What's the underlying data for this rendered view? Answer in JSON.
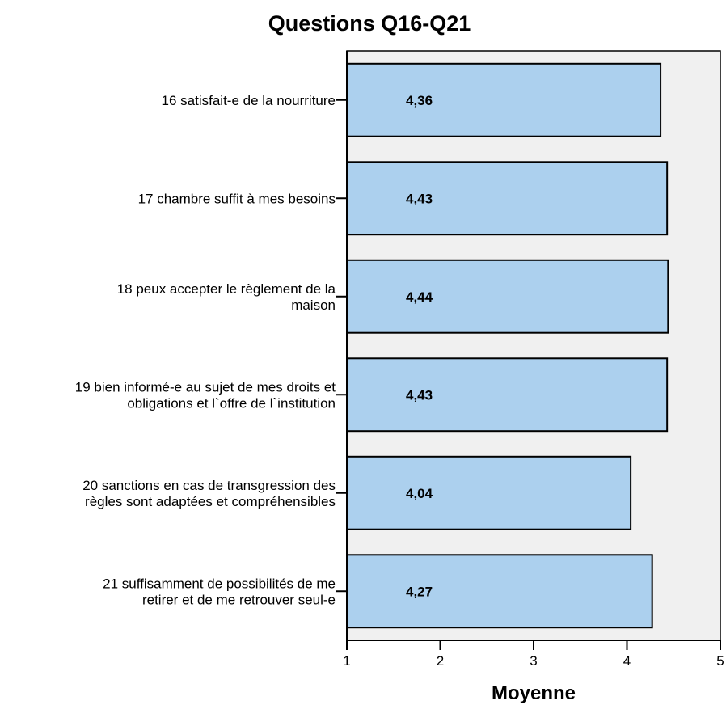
{
  "chart_data": {
    "type": "bar",
    "orientation": "horizontal",
    "title": "Questions Q16-Q21",
    "xlabel": "Moyenne",
    "ylabel": "",
    "xlim": [
      1,
      5
    ],
    "xticks": [
      "1",
      "2",
      "3",
      "4",
      "5"
    ],
    "grid": false,
    "legend": "none",
    "bar_color": "#acd0ee",
    "background_color": "#f0f0f0",
    "categories": [
      [
        "16 satisfait-e de la nourriture"
      ],
      [
        "17 chambre suffit à mes besoins"
      ],
      [
        "18 peux accepter le règlement de la",
        "maison"
      ],
      [
        "19 bien informé-e au sujet de mes droits et",
        "obligations et l`offre de l`institution"
      ],
      [
        "20 sanctions en cas de transgression des",
        "règles sont adaptées et compréhensibles"
      ],
      [
        "21 suffisamment de possibilités de me",
        "retirer et de me retrouver seul-e"
      ]
    ],
    "values": [
      4.36,
      4.43,
      4.44,
      4.43,
      4.04,
      4.27
    ],
    "data_labels": [
      "4,36",
      "4,43",
      "4,44",
      "4,43",
      "4,04",
      "4,27"
    ]
  }
}
